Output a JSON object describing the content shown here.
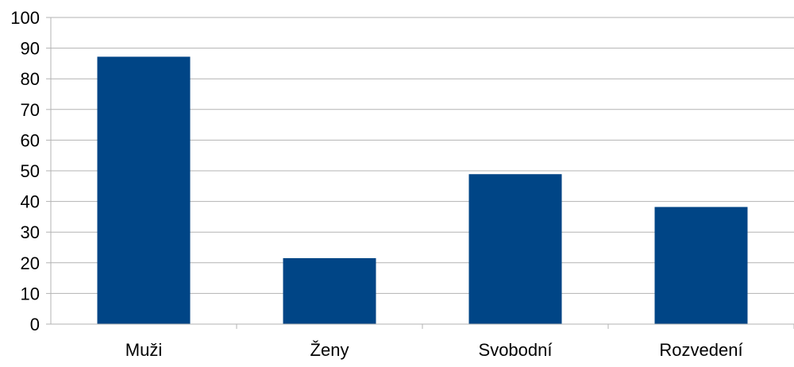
{
  "chart_data": {
    "type": "bar",
    "title": "",
    "xlabel": "",
    "ylabel": "",
    "categories": [
      "Muži",
      "Ženy",
      "Svobodní",
      "Rozvedení"
    ],
    "values": [
      87.2,
      21.5,
      48.9,
      38.2
    ],
    "ylim": [
      0,
      100
    ],
    "yticks": [
      "0",
      "10",
      "20",
      "30",
      "40",
      "50",
      "60",
      "70",
      "80",
      "90",
      "100"
    ],
    "grid": true,
    "legend": "none",
    "bar_color": "#004586",
    "grid_color": "#b3b3b3"
  }
}
